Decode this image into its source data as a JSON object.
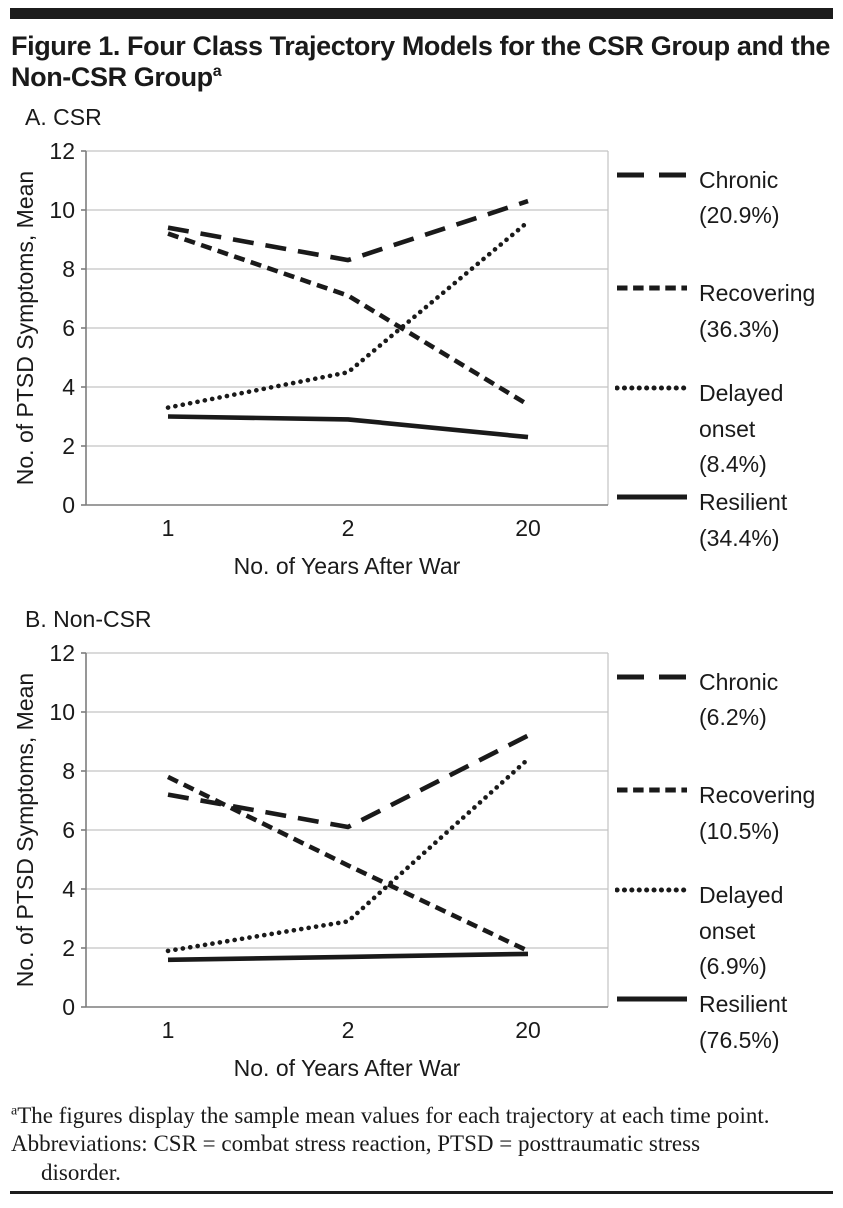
{
  "page": {
    "title_line1": "Figure 1. Four Class Trajectory Models for the CSR Group and the",
    "title_line2": "Non-CSR Group",
    "title_superscript": "a"
  },
  "colors": {
    "line": "#1a1a1a",
    "grid": "#c3c3c3",
    "frame": "#a8a8a8",
    "axis": "#7d7d7d",
    "text": "#1a1a1a",
    "rule": "#1c1c1c"
  },
  "chart_data": [
    {
      "type": "line",
      "panel_label": "A. CSR",
      "x": [
        1,
        2,
        20
      ],
      "x_tick_labels": [
        "1",
        "2",
        "20"
      ],
      "xlabel": "No. of Years After War",
      "ylabel": "No. of PTSD Symptoms, Mean",
      "ylim": [
        0,
        12
      ],
      "yticks": [
        0,
        2,
        4,
        6,
        8,
        10,
        12
      ],
      "grid": true,
      "legend_position": "right",
      "series": [
        {
          "name": "Chronic",
          "dash": "long-dash",
          "values": [
            9.4,
            8.3,
            10.3
          ],
          "legend_lines": [
            "Chronic",
            "(20.9%)"
          ]
        },
        {
          "name": "Recovering",
          "dash": "short-dash",
          "values": [
            9.2,
            7.1,
            3.4
          ],
          "legend_lines": [
            "Recovering",
            "(36.3%)"
          ]
        },
        {
          "name": "Delayed onset",
          "dash": "dotted",
          "values": [
            3.3,
            4.5,
            9.6
          ],
          "legend_lines": [
            "Delayed",
            "onset",
            "(8.4%)"
          ]
        },
        {
          "name": "Resilient",
          "dash": "solid",
          "values": [
            3.0,
            2.9,
            2.3
          ],
          "legend_lines": [
            "Resilient",
            "(34.4%)"
          ]
        }
      ]
    },
    {
      "type": "line",
      "panel_label": "B. Non-CSR",
      "x": [
        1,
        2,
        20
      ],
      "x_tick_labels": [
        "1",
        "2",
        "20"
      ],
      "xlabel": "No. of Years After War",
      "ylabel": "No. of PTSD Symptoms, Mean",
      "ylim": [
        0,
        12
      ],
      "yticks": [
        0,
        2,
        4,
        6,
        8,
        10,
        12
      ],
      "grid": true,
      "legend_position": "right",
      "series": [
        {
          "name": "Chronic",
          "dash": "long-dash",
          "values": [
            7.2,
            6.1,
            9.2
          ],
          "legend_lines": [
            "Chronic",
            "(6.2%)"
          ]
        },
        {
          "name": "Recovering",
          "dash": "short-dash",
          "values": [
            7.8,
            4.8,
            1.9
          ],
          "legend_lines": [
            "Recovering",
            "(10.5%)"
          ]
        },
        {
          "name": "Delayed onset",
          "dash": "dotted",
          "values": [
            1.9,
            2.9,
            8.4
          ],
          "legend_lines": [
            "Delayed",
            "onset",
            "(6.9%)"
          ]
        },
        {
          "name": "Resilient",
          "dash": "solid",
          "values": [
            1.6,
            1.7,
            1.8
          ],
          "legend_lines": [
            "Resilient",
            "(76.5%)"
          ]
        }
      ]
    }
  ],
  "footnote": {
    "marker": "a",
    "line1": "The figures display the sample mean values for each trajectory at each time point.",
    "line2": "Abbreviations: CSR = combat stress reaction, PTSD = posttraumatic stress",
    "line3": "disorder."
  }
}
